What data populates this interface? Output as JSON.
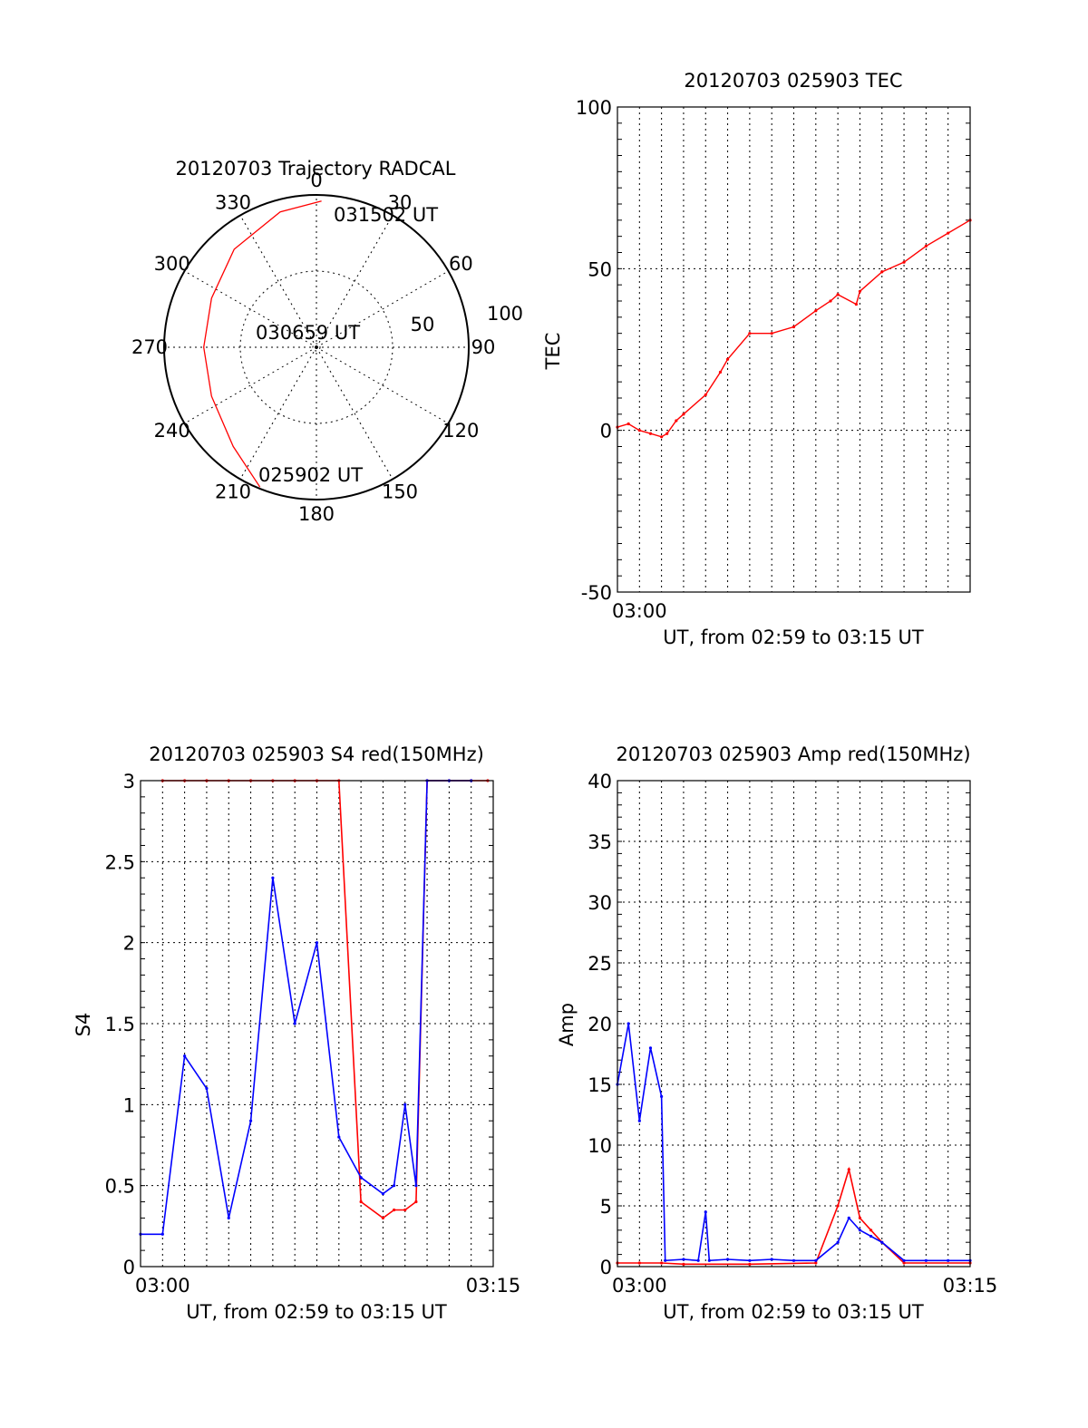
{
  "colors": {
    "red": "#ff0000",
    "blue": "#0000ff",
    "axis": "#000000"
  },
  "chart_data": [
    {
      "type": "polar",
      "title": "20120703 Trajectory RADCAL",
      "angle_labels": [
        "0",
        "30",
        "60",
        "90",
        "120",
        "150",
        "180",
        "210",
        "240",
        "270",
        "300",
        "330"
      ],
      "radius_labels": [
        "50",
        "100"
      ],
      "rlim": [
        0,
        100
      ],
      "annotations": [
        "031502 UT",
        "030659 UT",
        "025902 UT"
      ],
      "trajectory": {
        "color": "red",
        "points": [
          {
            "azimuth": 202,
            "zenith": 99
          },
          {
            "azimuth": 220,
            "zenith": 85
          },
          {
            "azimuth": 245,
            "zenith": 76
          },
          {
            "azimuth": 270,
            "zenith": 74
          },
          {
            "azimuth": 295,
            "zenith": 76
          },
          {
            "azimuth": 320,
            "zenith": 84
          },
          {
            "azimuth": 345,
            "zenith": 92
          },
          {
            "azimuth": 2,
            "zenith": 96
          }
        ]
      }
    },
    {
      "type": "line",
      "title": "20120703 025903 TEC",
      "ylabel": "TEC",
      "xlabel": "UT, from 02:59 to 03:15 UT",
      "xlim": [
        "02:59",
        "03:15"
      ],
      "ylim": [
        -50,
        100
      ],
      "yticks": [
        "-50",
        "0",
        "50",
        "100"
      ],
      "xticks": [
        {
          "t": "03:00",
          "label": "03:00"
        }
      ],
      "grid": true,
      "series": [
        {
          "color": "red",
          "x": [
            "02:59",
            "02:59:30",
            "03:00",
            "03:00:30",
            "03:01",
            "03:01:15",
            "03:01:40",
            "03:02",
            "03:03",
            "03:03:40",
            "03:04",
            "03:05",
            "03:06",
            "03:07",
            "03:08",
            "03:08:40",
            "03:09",
            "03:09:50",
            "03:10",
            "03:11",
            "03:12",
            "03:13",
            "03:14",
            "03:15"
          ],
          "y": [
            1,
            2,
            0,
            -1,
            -2,
            -1,
            3,
            5,
            11,
            18,
            22,
            30,
            30,
            32,
            37,
            40,
            42,
            39,
            43,
            49,
            52,
            57,
            61,
            65
          ]
        }
      ]
    },
    {
      "type": "line",
      "title": "20120703 025903 S4 red(150MHz)",
      "ylabel": "S4",
      "xlabel": "UT, from 02:59 to 03:15 UT",
      "xlim": [
        "02:59",
        "03:15"
      ],
      "ylim": [
        0,
        3
      ],
      "yticks": [
        "0",
        "0.5",
        "1",
        "1.5",
        "2",
        "2.5",
        "3"
      ],
      "xticks": [
        {
          "t": "03:00",
          "label": "03:00"
        },
        {
          "t": "03:15",
          "label": "03:15"
        }
      ],
      "grid": true,
      "series": [
        {
          "color": "red",
          "x": [
            "03:00",
            "03:01",
            "03:02",
            "03:03",
            "03:04",
            "03:05",
            "03:06",
            "03:07",
            "03:08",
            "03:09",
            "03:10",
            "03:10:30",
            "03:11",
            "03:11:30",
            "03:12",
            "03:13",
            "03:14",
            "03:14:45"
          ],
          "y": [
            3.0,
            3.0,
            3.0,
            3.0,
            3.0,
            3.0,
            3.0,
            3.0,
            3.0,
            0.4,
            0.3,
            0.35,
            0.35,
            0.4,
            3.0,
            3.0,
            3.0,
            3.0
          ]
        },
        {
          "color": "blue",
          "x": [
            "02:59",
            "03:00",
            "03:01",
            "03:02",
            "03:03",
            "03:04",
            "03:05",
            "03:06",
            "03:07",
            "03:08",
            "03:09",
            "03:10",
            "03:10:30",
            "03:11",
            "03:11:30",
            "03:12",
            "03:13",
            "03:14"
          ],
          "y": [
            0.2,
            0.2,
            1.3,
            1.1,
            0.3,
            0.9,
            2.4,
            1.5,
            2.0,
            0.8,
            0.55,
            0.45,
            0.5,
            1.0,
            0.5,
            3.0,
            3.0,
            3.0
          ]
        }
      ]
    },
    {
      "type": "line",
      "title": "20120703 025903 Amp red(150MHz)",
      "ylabel": "Amp",
      "xlabel": "UT, from 02:59 to 03:15 UT",
      "xlim": [
        "02:59",
        "03:15"
      ],
      "ylim": [
        0,
        40
      ],
      "yticks": [
        "0",
        "5",
        "10",
        "15",
        "20",
        "25",
        "30",
        "35",
        "40"
      ],
      "xticks": [
        {
          "t": "03:00",
          "label": "03:00"
        },
        {
          "t": "03:15",
          "label": "03:15"
        }
      ],
      "grid": true,
      "series": [
        {
          "color": "red",
          "x": [
            "02:59",
            "03:00",
            "03:01",
            "03:02",
            "03:05",
            "03:08",
            "03:09",
            "03:09:30",
            "03:10",
            "03:10:30",
            "03:11",
            "03:12",
            "03:15"
          ],
          "y": [
            0.3,
            0.3,
            0.3,
            0.2,
            0.2,
            0.3,
            5.0,
            8.0,
            4.0,
            3.0,
            2.0,
            0.3,
            0.3
          ]
        },
        {
          "color": "blue",
          "x": [
            "02:59",
            "02:59:30",
            "03:00",
            "03:00:30",
            "03:01",
            "03:01:10",
            "03:02",
            "03:02:40",
            "03:03",
            "03:03:10",
            "03:04",
            "03:05",
            "03:06",
            "03:07",
            "03:08",
            "03:09",
            "03:09:30",
            "03:10",
            "03:10:30",
            "03:11",
            "03:12",
            "03:13",
            "03:14",
            "03:15"
          ],
          "y": [
            15,
            20,
            12,
            18,
            14,
            0.5,
            0.6,
            0.5,
            4.5,
            0.5,
            0.6,
            0.5,
            0.6,
            0.5,
            0.5,
            2.0,
            4.0,
            3.0,
            2.5,
            2.0,
            0.5,
            0.5,
            0.5,
            0.5
          ]
        }
      ]
    }
  ]
}
